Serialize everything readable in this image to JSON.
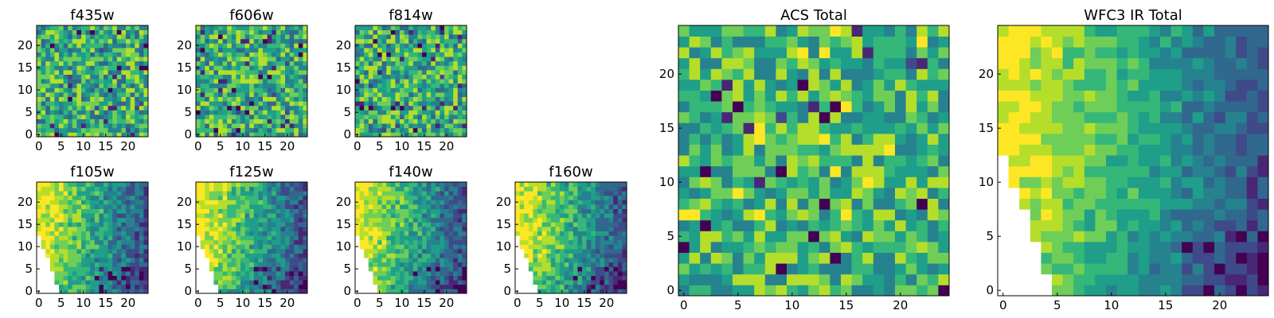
{
  "figure": {
    "colormap": [
      "#440154",
      "#482777",
      "#3e4a89",
      "#31688e",
      "#26828e",
      "#1f9e89",
      "#35b779",
      "#6ece58",
      "#b5de2b",
      "#fde725"
    ]
  },
  "chart_data": [
    {
      "id": "f435w",
      "type": "heatmap",
      "title": "f435w",
      "grid_size": 25,
      "xlim": [
        0,
        24
      ],
      "ylim": [
        0,
        24
      ],
      "xticks": [
        0,
        5,
        10,
        15,
        20
      ],
      "yticks": [
        0,
        5,
        10,
        15,
        20
      ],
      "pattern": "noise",
      "seed": 11,
      "nan_region": "none"
    },
    {
      "id": "f606w",
      "type": "heatmap",
      "title": "f606w",
      "grid_size": 25,
      "xlim": [
        0,
        24
      ],
      "ylim": [
        0,
        24
      ],
      "xticks": [
        0,
        5,
        10,
        15,
        20
      ],
      "yticks": [
        0,
        5,
        10,
        15,
        20
      ],
      "pattern": "noise",
      "seed": 23,
      "nan_region": "none"
    },
    {
      "id": "f814w",
      "type": "heatmap",
      "title": "f814w",
      "grid_size": 25,
      "xlim": [
        0,
        24
      ],
      "ylim": [
        0,
        24
      ],
      "xticks": [
        0,
        5,
        10,
        15,
        20
      ],
      "yticks": [
        0,
        5,
        10,
        15,
        20
      ],
      "pattern": "noise",
      "seed": 37,
      "nan_region": "none"
    },
    {
      "id": "f105w",
      "type": "heatmap",
      "title": "f105w",
      "grid_size": 25,
      "xlim": [
        0,
        24
      ],
      "ylim": [
        0,
        24
      ],
      "xticks": [
        0,
        5,
        10,
        15,
        20
      ],
      "yticks": [
        0,
        5,
        10,
        15,
        20
      ],
      "pattern": "ir",
      "seed": 41,
      "nan_region": "lower-left"
    },
    {
      "id": "f125w",
      "type": "heatmap",
      "title": "f125w",
      "grid_size": 25,
      "xlim": [
        0,
        24
      ],
      "ylim": [
        0,
        24
      ],
      "xticks": [
        0,
        5,
        10,
        15,
        20
      ],
      "yticks": [
        0,
        5,
        10,
        15,
        20
      ],
      "pattern": "ir",
      "seed": 53,
      "nan_region": "lower-left"
    },
    {
      "id": "f140w",
      "type": "heatmap",
      "title": "f140w",
      "grid_size": 25,
      "xlim": [
        0,
        24
      ],
      "ylim": [
        0,
        24
      ],
      "xticks": [
        0,
        5,
        10,
        15,
        20
      ],
      "yticks": [
        0,
        5,
        10,
        15,
        20
      ],
      "pattern": "ir",
      "seed": 67,
      "nan_region": "lower-left"
    },
    {
      "id": "f160w",
      "type": "heatmap",
      "title": "f160w",
      "grid_size": 25,
      "xlim": [
        0,
        24
      ],
      "ylim": [
        0,
        24
      ],
      "xticks": [
        0,
        5,
        10,
        15,
        20
      ],
      "yticks": [
        0,
        5,
        10,
        15,
        20
      ],
      "pattern": "ir",
      "seed": 79,
      "nan_region": "lower-left"
    },
    {
      "id": "acs-total",
      "type": "heatmap",
      "title": "ACS Total",
      "grid_size": 25,
      "xlim": [
        0,
        24
      ],
      "ylim": [
        0,
        24
      ],
      "xticks": [
        0,
        5,
        10,
        15,
        20
      ],
      "yticks": [
        0,
        5,
        10,
        15,
        20
      ],
      "pattern": "noise-bright",
      "seed": 97,
      "nan_region": "none"
    },
    {
      "id": "wfc3-ir-total",
      "type": "heatmap",
      "title": "WFC3 IR Total",
      "grid_size": 25,
      "xlim": [
        0,
        24
      ],
      "ylim": [
        0,
        24
      ],
      "xticks": [
        0,
        5,
        10,
        15,
        20
      ],
      "yticks": [
        0,
        5,
        10,
        15,
        20
      ],
      "pattern": "ir-smooth",
      "seed": 101,
      "nan_region": "lower-left"
    }
  ]
}
